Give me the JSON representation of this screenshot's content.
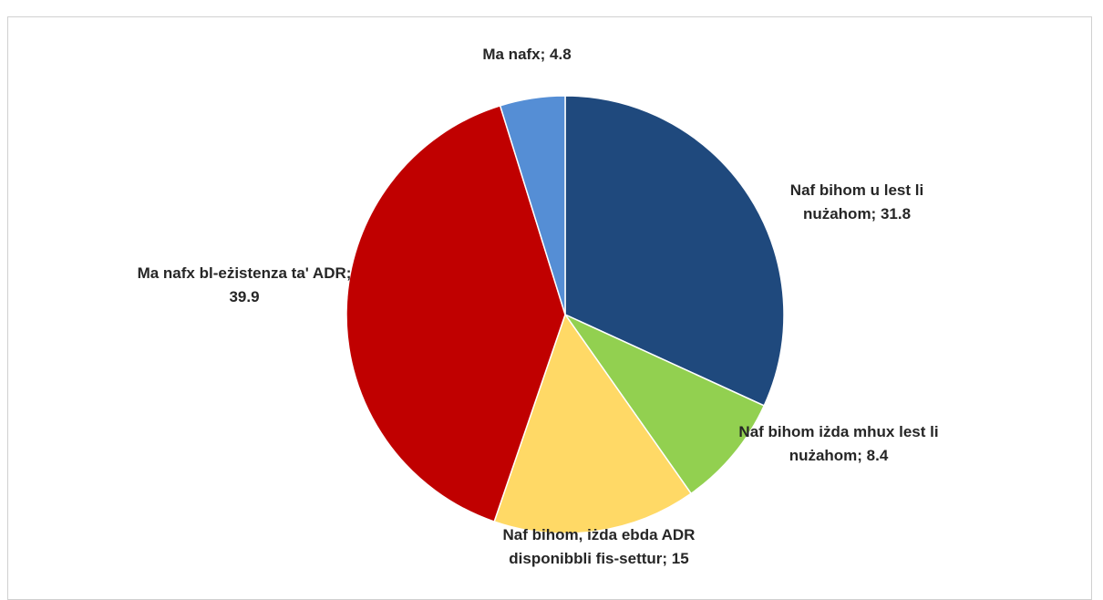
{
  "chart_data": {
    "type": "pie",
    "values": [
      31.8,
      8.4,
      15,
      39.9,
      4.8
    ],
    "value_labels": [
      "Naf bihom u lest li nużahom; 31.8",
      "Naf bihom iżda mhux lest li nużahom; 8.4",
      "Naf bihom, iżda ebda ADR disponibbli fis-settur; 15",
      "Ma nafx bl-eżistenza ta' ADR; 39.9",
      "Ma nafx; 4.8"
    ],
    "colors": [
      "#1f497d",
      "#92d050",
      "#ffd966",
      "#c00000",
      "#558ed5"
    ]
  }
}
